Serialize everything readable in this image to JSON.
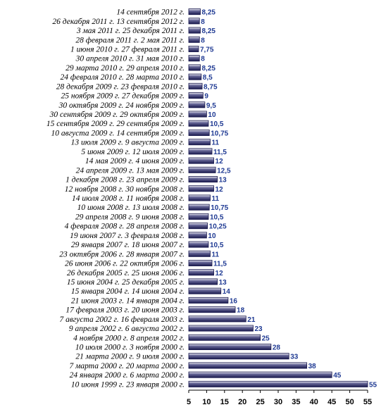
{
  "chart_data": {
    "type": "bar",
    "orientation": "horizontal",
    "categories": [
      "14 сентября 2012 г.",
      "26 декабря 2011 г.    13 сентября 2012 г.",
      "3 мая 2011 г.    25 декабря 2011 г.",
      "28 февраля 2011 г.    2 мая 2011 г.",
      "1 июня 2010 г.    27 февраля 2011 г.",
      "30 апреля 2010 г.    31 мая 2010 г.",
      "29 марта 2010 г.    29 апреля 2010 г.",
      "24 февраля 2010 г.    28 марта 2010 г.",
      "28 декабря 2009 г.    23 февраля 2010 г.",
      "25 ноября 2009 г.    27 декабря 2009 г.",
      "30 октября 2009 г.    24 ноября 2009 г.",
      "30 сентября 2009 г.    29 октября 2009 г.",
      "15 сентября 2009 г.    29 сентября 2009 г.",
      "10 августа 2009 г.    14 сентября 2009 г.",
      "13 июля 2009 г.    9 августа 2009 г.",
      "5 июня 2009 г.    12 июля 2009 г.",
      "14 мая 2009 г.    4 июня 2009 г.",
      "24 апреля 2009 г.    13 мая 2009 г.",
      "1 декабря 2008 г.    23 апреля 2009 г.",
      "12 ноября 2008 г.    30 ноября 2008 г.",
      "14 июля 2008 г.    11 ноября 2008 г.",
      "10 июня 2008 г.    13 июля 2008 г.",
      "29 апреля 2008 г.    9 июня 2008 г.",
      "4 февраля 2008 г.    28 апреля 2008 г.",
      "19 июня 2007 г.    3 февраля 2008 г.",
      "29 января 2007 г.    18 июня 2007 г.",
      "23 октября 2006 г.    28 января 2007 г.",
      "26 июня 2006 г.    22 октября 2006 г.",
      "26 декабря 2005 г.    25 июня 2006 г.",
      "15 июня 2004 г.    25 декабря 2005 г.",
      "15 января 2004 г.    14 июня 2004 г.",
      "21 июня 2003 г.    14 января 2004 г.",
      "17 февраля 2003 г.    20 июня 2003 г.",
      "7 августа 2002 г.    16 февраля 2003 г.",
      "9 апреля 2002 г.    6 августа 2002 г.",
      "4 ноября 2000 г.    8 апреля 2002 г.",
      "10 июля 2000 г.    3 ноября 2000 г.",
      "21 марта 2000 г.    9 июля 2000 г.",
      "7 марта 2000 г.    20 марта 2000 г.",
      "24 января 2000 г.    6 марта 2000 г.",
      "10 июня 1999 г.    23 января 2000 г."
    ],
    "values": [
      8.25,
      8,
      8.25,
      8,
      7.75,
      8,
      8.25,
      8.5,
      8.75,
      9,
      9.5,
      10,
      10.5,
      10.75,
      11,
      11.5,
      12,
      12.5,
      13,
      12,
      11,
      10.75,
      10.5,
      10.25,
      10,
      10.5,
      11,
      11.5,
      12,
      13,
      14,
      16,
      18,
      21,
      23,
      25,
      28,
      33,
      38,
      45,
      55
    ],
    "value_labels": [
      "8,25",
      "8",
      "8,25",
      "8",
      "7,75",
      "8",
      "8,25",
      "8,5",
      "8,75",
      "9",
      "9,5",
      "10",
      "10,5",
      "10,75",
      "11",
      "11,5",
      "12",
      "12,5",
      "13",
      "12",
      "11",
      "10,75",
      "10,5",
      "10,25",
      "10",
      "10,5",
      "11",
      "11,5",
      "12",
      "13",
      "14",
      "16",
      "18",
      "21",
      "23",
      "25",
      "28",
      "33",
      "38",
      "45",
      "55"
    ],
    "xlim": [
      5,
      55
    ],
    "ticks": [
      "5",
      "10",
      "15",
      "20",
      "25",
      "30",
      "35",
      "40",
      "45",
      "50",
      "55"
    ],
    "grid": false,
    "bar_color": "#1a1a4e",
    "bar_highlight": "#ffffff",
    "value_label_color": "#1f3a93",
    "title": "",
    "xlabel": "",
    "ylabel": ""
  }
}
